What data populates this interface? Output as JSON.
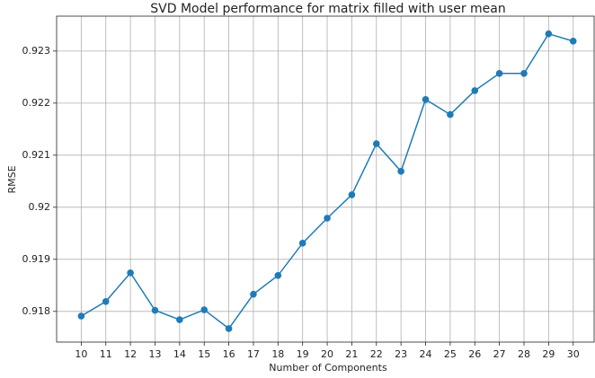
{
  "chart_data": {
    "type": "line",
    "title": "SVD Model performance for matrix filled with user mean",
    "x_label": "Number of Components",
    "y_label": "RMSE",
    "x": [
      10,
      11,
      12,
      13,
      14,
      15,
      16,
      17,
      18,
      19,
      20,
      21,
      22,
      23,
      24,
      25,
      26,
      27,
      28,
      29,
      30
    ],
    "series": [
      {
        "name": "RMSE",
        "color": "#1f7bb6",
        "values": [
          0.91791,
          0.91819,
          0.91874,
          0.91802,
          0.91784,
          0.91803,
          0.91767,
          0.91833,
          0.91869,
          0.91931,
          0.91979,
          0.92024,
          0.92122,
          0.92069,
          0.92207,
          0.92178,
          0.92224,
          0.92257,
          0.92257,
          0.92333,
          0.92319
        ]
      }
    ],
    "xlim": [
      9,
      30.85
    ],
    "ylim": [
      0.91741,
      0.92367
    ],
    "xticks": [
      10,
      11,
      12,
      13,
      14,
      15,
      16,
      17,
      18,
      19,
      20,
      21,
      22,
      23,
      24,
      25,
      26,
      27,
      28,
      29,
      30
    ],
    "yticks": [
      0.918,
      0.919,
      0.92,
      0.921,
      0.922,
      0.923
    ],
    "grid": true
  }
}
